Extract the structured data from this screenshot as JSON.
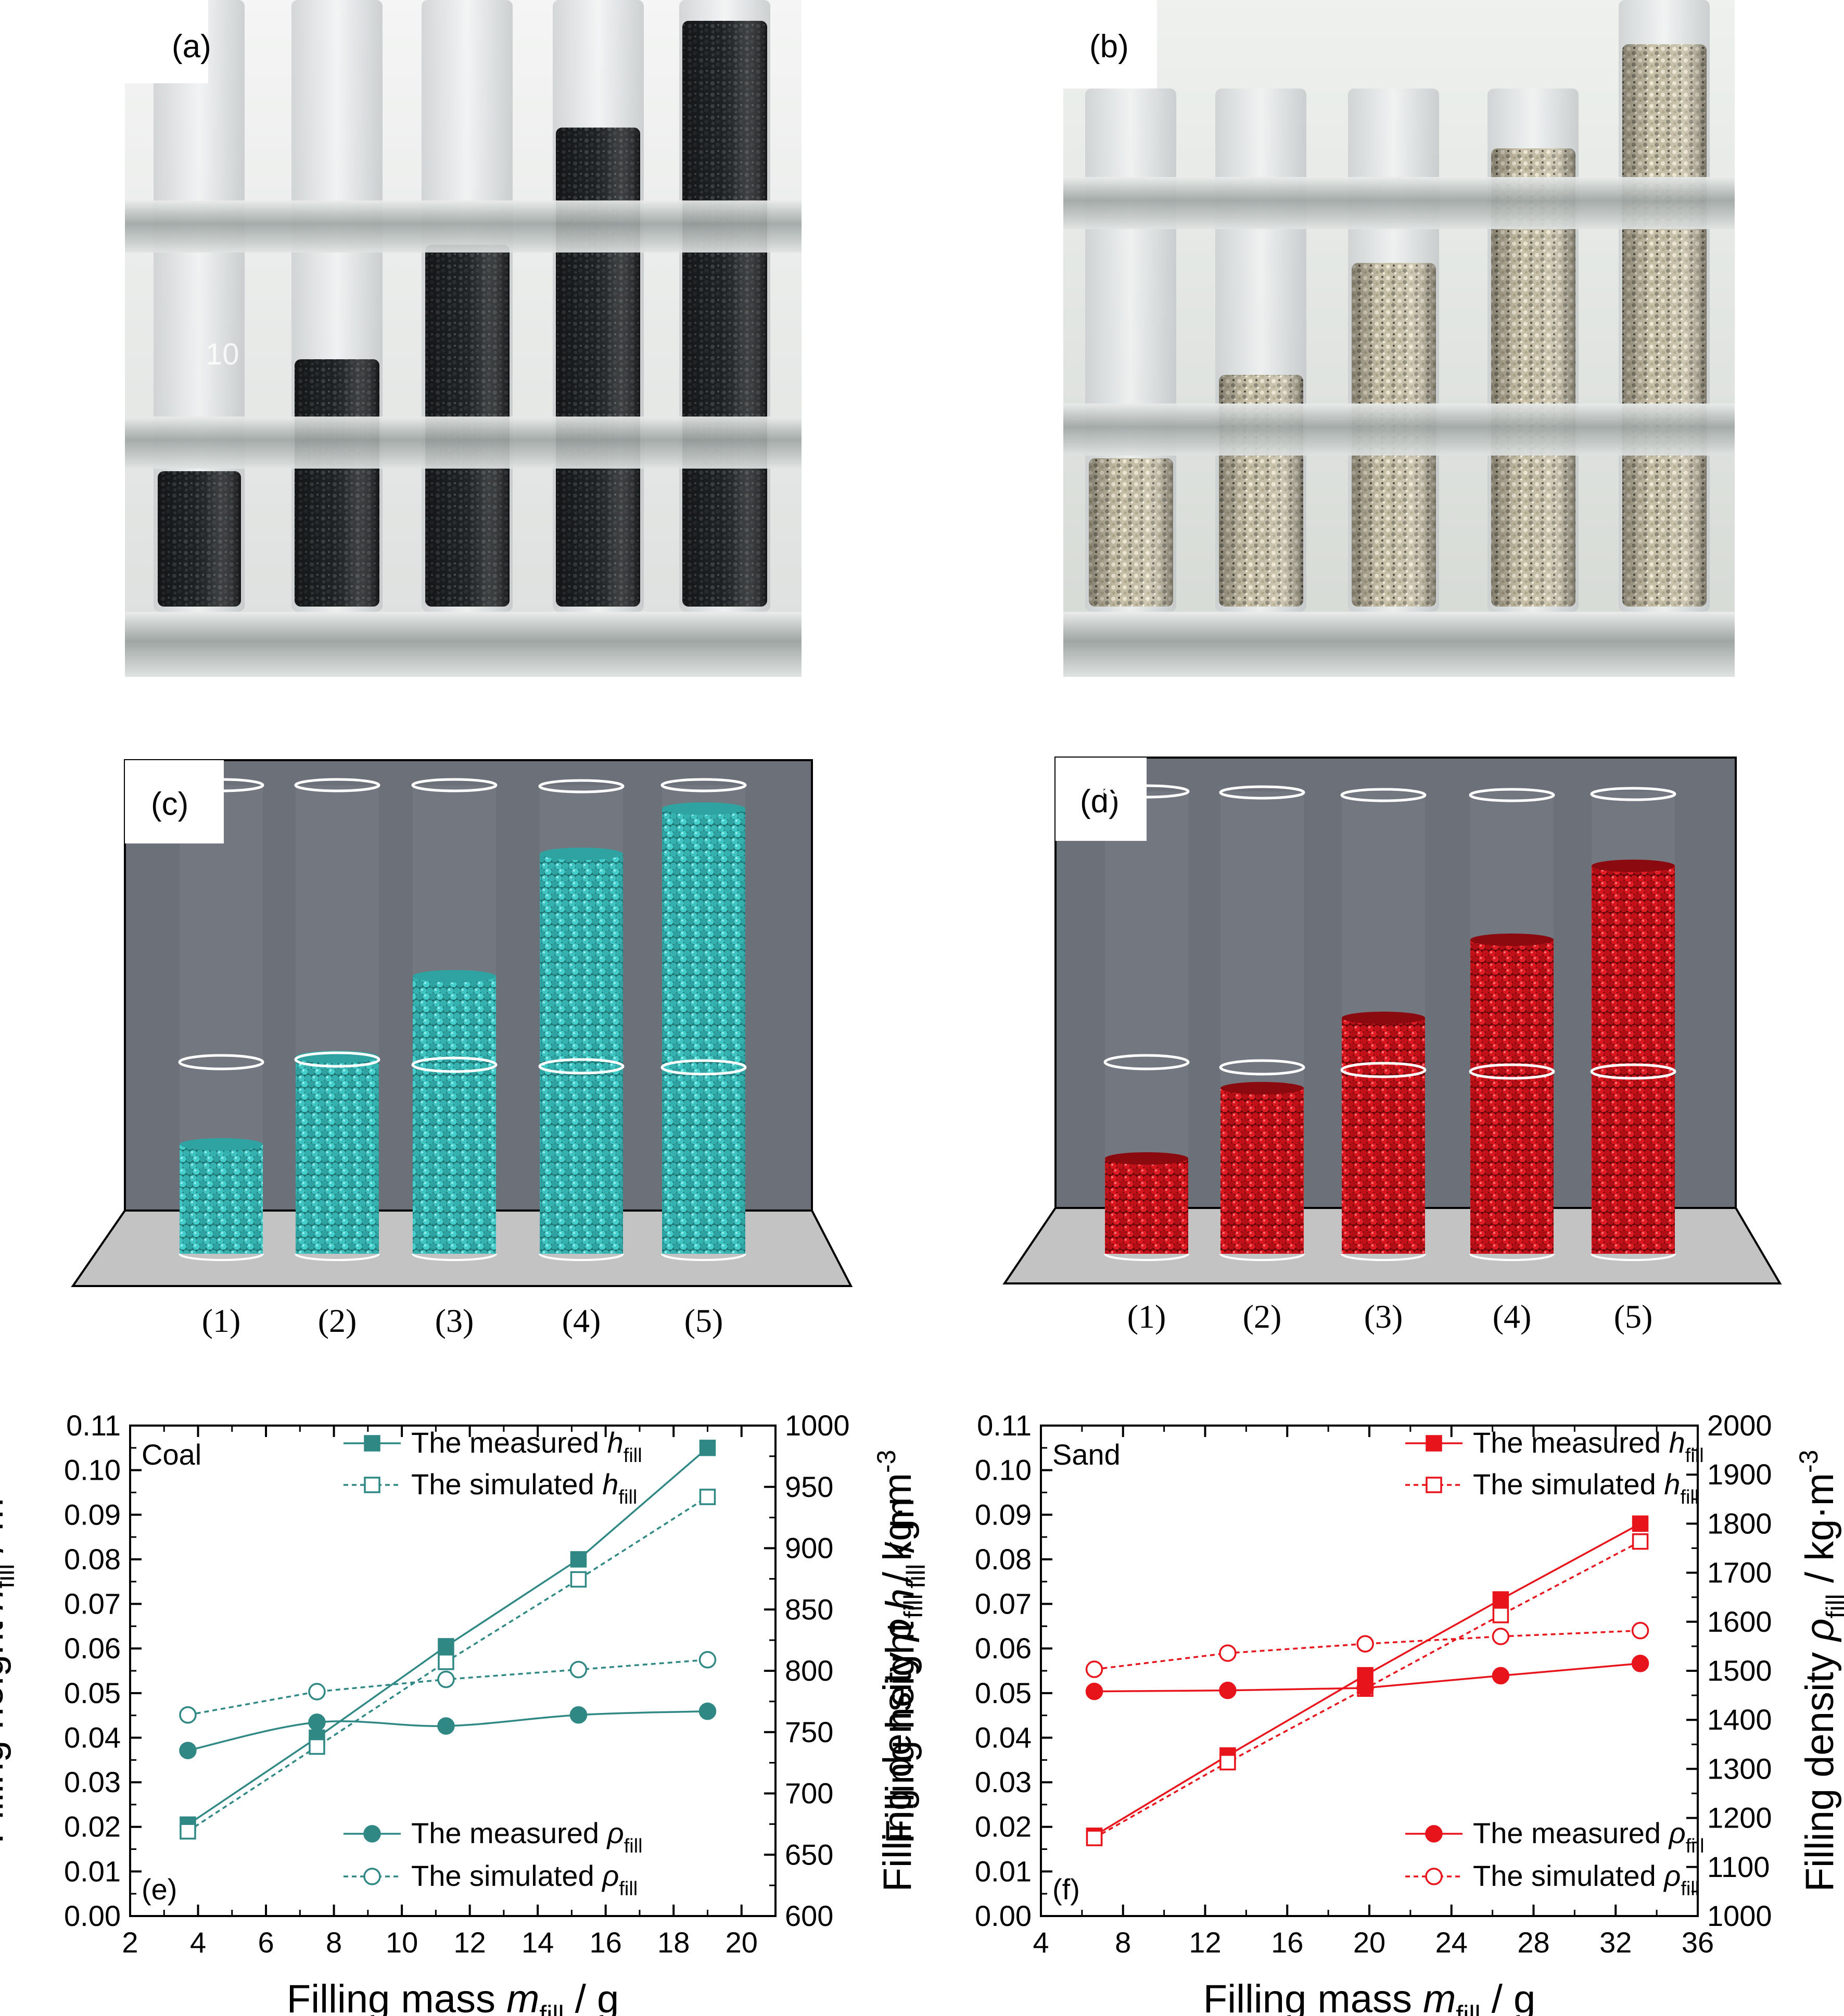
{
  "panels": {
    "a": {
      "label": "(a)",
      "tube_mark": "10"
    },
    "b": {
      "label": "(b)"
    },
    "c": {
      "label": "(c)"
    },
    "d": {
      "label": "(d)"
    },
    "numbers": [
      "(1)",
      "(2)",
      "(3)",
      "(4)",
      "(5)"
    ]
  },
  "colors": {
    "coal": "#2f8884",
    "sand": "#e8141b",
    "coal_particle": "#3cc2c0",
    "sand_particle": "#d4141c",
    "backdrop": "#6b7079",
    "floor": "#c3c3c3"
  },
  "chart_data": [
    {
      "panel": "(e)",
      "material": "Coal",
      "type": "line",
      "xlabel_main": "Filling mass ",
      "xlabel_var": "m",
      "xlabel_sub": "fill",
      "xlabel_unit": " / g",
      "ylabel_left_main": "Filling height ",
      "ylabel_left_var": "h",
      "ylabel_left_sub": "fill",
      "ylabel_left_unit": " / m",
      "ylabel_right_main": "Filling density ",
      "ylabel_right_var": "ρ",
      "ylabel_right_sub": "fill",
      "ylabel_right_unit": " / kg·m",
      "ylabel_right_exp": "-3",
      "xlim": [
        2,
        21
      ],
      "xticks": [
        2,
        4,
        6,
        8,
        10,
        12,
        14,
        16,
        18,
        20
      ],
      "ylim_left": [
        0,
        0.11
      ],
      "yticks_left": [
        "0.00",
        "0.01",
        "0.02",
        "0.03",
        "0.04",
        "0.05",
        "0.06",
        "0.07",
        "0.08",
        "0.09",
        "0.10",
        "0.11"
      ],
      "ylim_right": [
        600,
        1000
      ],
      "yticks_right": [
        600,
        650,
        700,
        750,
        800,
        850,
        900,
        950,
        1000
      ],
      "x": [
        3.7,
        7.5,
        11.3,
        15.2,
        19.0
      ],
      "series": [
        {
          "name": "The measured ",
          "var": "h",
          "sub": "fill",
          "axis": "left",
          "marker": "square",
          "filled": true,
          "dashed": false,
          "smooth": false,
          "values": [
            0.0205,
            0.04,
            0.0605,
            0.08,
            0.105
          ]
        },
        {
          "name": "The simulated ",
          "var": "h",
          "sub": "fill",
          "axis": "left",
          "marker": "square",
          "filled": false,
          "dashed": true,
          "smooth": false,
          "values": [
            0.019,
            0.038,
            0.057,
            0.0755,
            0.094
          ]
        },
        {
          "name": "The measured ",
          "var": "ρ",
          "sub": "fill",
          "axis": "right",
          "marker": "circle",
          "filled": true,
          "dashed": false,
          "smooth": true,
          "values": [
            735,
            758,
            755,
            764,
            767
          ]
        },
        {
          "name": "The simulated ",
          "var": "ρ",
          "sub": "fill",
          "axis": "right",
          "marker": "circle",
          "filled": false,
          "dashed": true,
          "smooth": false,
          "values": [
            764,
            783,
            793,
            801,
            809
          ]
        }
      ]
    },
    {
      "panel": "(f)",
      "material": "Sand",
      "type": "line",
      "xlabel_main": "Filling mass ",
      "xlabel_var": "m",
      "xlabel_sub": "fill",
      "xlabel_unit": " / g",
      "ylabel_left_main": "Filling height ",
      "ylabel_left_var": "h",
      "ylabel_left_sub": "fill",
      "ylabel_left_unit": " / m",
      "ylabel_right_main": "Filling density ",
      "ylabel_right_var": "ρ",
      "ylabel_right_sub": "fill",
      "ylabel_right_unit": " / kg·m",
      "ylabel_right_exp": "-3",
      "xlim": [
        4,
        36
      ],
      "xticks": [
        4,
        8,
        12,
        16,
        20,
        24,
        28,
        32,
        36
      ],
      "ylim_left": [
        0,
        0.11
      ],
      "yticks_left": [
        "0.00",
        "0.01",
        "0.02",
        "0.03",
        "0.04",
        "0.05",
        "0.06",
        "0.07",
        "0.08",
        "0.09",
        "0.10",
        "0.11"
      ],
      "ylim_right": [
        1000,
        2000
      ],
      "yticks_right": [
        1000,
        1100,
        1200,
        1300,
        1400,
        1500,
        1600,
        1700,
        1800,
        1900,
        2000
      ],
      "x": [
        6.6,
        13.1,
        19.8,
        26.4,
        33.2
      ],
      "series": [
        {
          "name": "The measured ",
          "var": "h",
          "sub": "fill",
          "axis": "left",
          "marker": "square",
          "filled": true,
          "dashed": false,
          "smooth": false,
          "values": [
            0.018,
            0.036,
            0.054,
            0.071,
            0.088
          ]
        },
        {
          "name": "The simulated ",
          "var": "h",
          "sub": "fill",
          "axis": "left",
          "marker": "square",
          "filled": false,
          "dashed": true,
          "smooth": false,
          "values": [
            0.0175,
            0.0345,
            0.051,
            0.0675,
            0.084
          ]
        },
        {
          "name": "The measured ",
          "var": "ρ",
          "sub": "fill",
          "axis": "right",
          "marker": "circle",
          "filled": true,
          "dashed": false,
          "smooth": false,
          "values": [
            1458,
            1460,
            1465,
            1490,
            1515
          ]
        },
        {
          "name": "The simulated ",
          "var": "ρ",
          "sub": "fill",
          "axis": "right",
          "marker": "circle",
          "filled": false,
          "dashed": true,
          "smooth": false,
          "values": [
            1503,
            1536,
            1555,
            1570,
            1582
          ]
        }
      ]
    }
  ]
}
